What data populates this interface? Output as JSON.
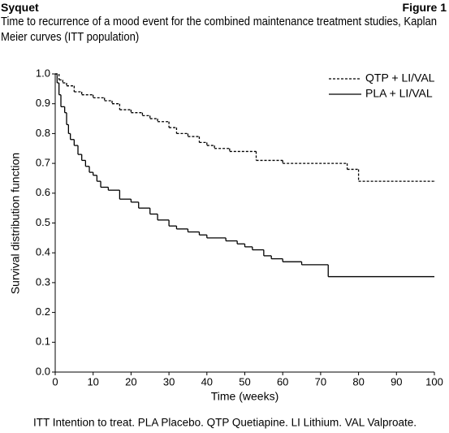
{
  "header": {
    "brand": "Syquet",
    "figure": "Figure 1"
  },
  "chart_data": {
    "type": "step",
    "title": "Time to recurrence of a mood event for the combined maintenance treatment studies, Kaplan Meier curves (ITT population)",
    "x_label": "Time (weeks)",
    "y_label": "Survival distribution function",
    "footnote": "ITT Intention to treat. PLA Placebo. QTP Quetiapine. LI Lithium. VAL Valproate.",
    "xlim": [
      0,
      100
    ],
    "xticks": [
      0,
      10,
      20,
      30,
      40,
      50,
      60,
      70,
      80,
      90,
      100
    ],
    "ylim": [
      0,
      1
    ],
    "yticks": [
      {
        "value": 0,
        "label": "0.0"
      },
      0.1,
      0.2,
      0.3,
      0.4,
      0.5,
      0.6,
      0.7,
      0.8,
      0.9,
      {
        "value": 1,
        "label": "1.0"
      }
    ],
    "legend": "top-right",
    "series": [
      {
        "name": "QTP + LI/VAL",
        "color": "#000000",
        "dash": "dashed",
        "x": [
          0,
          1,
          2,
          3,
          5,
          7,
          10,
          13,
          15,
          17,
          20,
          23,
          25,
          27,
          30,
          32,
          35,
          38,
          40,
          42,
          46,
          53,
          60,
          77,
          80,
          100
        ],
        "values": [
          1.0,
          0.98,
          0.97,
          0.96,
          0.94,
          0.93,
          0.92,
          0.91,
          0.9,
          0.88,
          0.87,
          0.86,
          0.85,
          0.84,
          0.82,
          0.8,
          0.79,
          0.77,
          0.76,
          0.75,
          0.74,
          0.71,
          0.7,
          0.68,
          0.64,
          0.64
        ]
      },
      {
        "name": "PLA + LI/VAL",
        "color": "#000000",
        "dash": "solid",
        "x": [
          0,
          0.5,
          1,
          1.5,
          2.5,
          3,
          3.5,
          4,
          5,
          6,
          7,
          8,
          9,
          10,
          11,
          12,
          14,
          17,
          20,
          22,
          25,
          27,
          30,
          32,
          35,
          38,
          40,
          45,
          48,
          50,
          52,
          55,
          57,
          60,
          65,
          72,
          100
        ],
        "values": [
          1.0,
          0.97,
          0.93,
          0.89,
          0.87,
          0.83,
          0.8,
          0.78,
          0.76,
          0.73,
          0.71,
          0.69,
          0.67,
          0.66,
          0.64,
          0.62,
          0.61,
          0.58,
          0.57,
          0.55,
          0.53,
          0.51,
          0.49,
          0.48,
          0.47,
          0.46,
          0.45,
          0.44,
          0.43,
          0.42,
          0.41,
          0.39,
          0.38,
          0.37,
          0.36,
          0.32,
          0.32
        ]
      }
    ]
  }
}
